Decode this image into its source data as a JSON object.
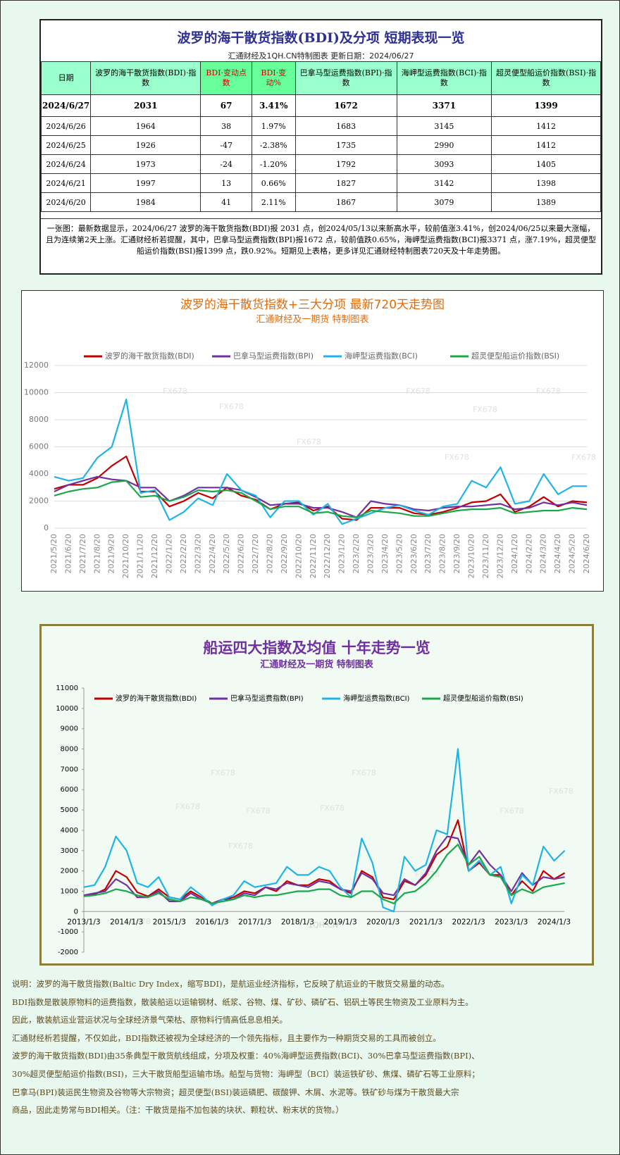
{
  "header": {
    "title": "波罗的海干散货指数(BDI)及分项  短期表现一览",
    "subtitle": "汇通财经及1QH.CN特制图表    更新日期：2024/06/27"
  },
  "table": {
    "columns": [
      "日期",
      "波罗的海干散货指数(BDI)·指数",
      "BDI·变动点数",
      "BDI·变动%",
      "巴拿马型运费指数(BPI)·指数",
      "海岬型运费指数(BCI)·指数",
      "超灵便型船运价指数(BSI)·指数"
    ],
    "rows": [
      [
        "2024/6/27",
        "2031",
        "67",
        "3.41%",
        "1672",
        "3371",
        "1399"
      ],
      [
        "2024/6/26",
        "1964",
        "38",
        "1.97%",
        "1683",
        "3145",
        "1412"
      ],
      [
        "2024/6/25",
        "1926",
        "-47",
        "-2.38%",
        "1735",
        "2990",
        "1412"
      ],
      [
        "2024/6/24",
        "1973",
        "-24",
        "-1.20%",
        "1792",
        "3093",
        "1405"
      ],
      [
        "2024/6/21",
        "1997",
        "13",
        "0.66%",
        "1827",
        "3142",
        "1398"
      ],
      [
        "2024/6/20",
        "1984",
        "41",
        "2.11%",
        "1867",
        "3079",
        "1389"
      ]
    ]
  },
  "summary": "一张图：最新数据显示，2024/06/27 波罗的海干散货指数(BDI)报 2031 点，创2024/05/13以来新高水平，较前值涨3.41%，创2024/06/25以来最大涨幅，且为连续第2天上涨。汇通财经析若提醒，其中，巴拿马型运费指数(BPI)报1672 点，较前值跌0.65%，海岬型运费指数(BCI)报3371 点，涨7.19%，超灵便型船运价指数(BSI)报1399 点，跌0.92%。短期见上表格，更多详见汇通财经特制图表720天及十年走势图。",
  "chart_data": [
    {
      "type": "line",
      "title": "波罗的海干散货指数+三大分项  最新720天走势图",
      "subtitle": "汇通财经及一期货  特制图表",
      "watermark": "FX678",
      "categories": [
        "2021/5/20",
        "2021/6/20",
        "2021/7/20",
        "2021/8/20",
        "2021/9/20",
        "2021/10/20",
        "2021/11/20",
        "2021/12/20",
        "2022/1/20",
        "2022/2/20",
        "2022/3/20",
        "2022/4/20",
        "2022/5/20",
        "2022/6/20",
        "2022/7/20",
        "2022/8/20",
        "2022/9/20",
        "2022/10/20",
        "2022/11/20",
        "2022/12/20",
        "2023/1/20",
        "2023/2/20",
        "2023/3/20",
        "2023/4/20",
        "2023/5/20",
        "2023/6/20",
        "2023/7/20",
        "2023/8/20",
        "2023/9/20",
        "2023/10/20",
        "2023/11/20",
        "2023/12/20",
        "2024/1/20",
        "2024/2/20",
        "2024/3/20",
        "2024/4/20",
        "2024/5/20",
        "2024/6/20"
      ],
      "series": [
        {
          "name": "波罗的海干散货指数(BDI)",
          "color": "#c00000",
          "values": [
            2900,
            3200,
            3200,
            3700,
            4600,
            5300,
            2700,
            2700,
            1600,
            2000,
            2600,
            2200,
            3000,
            2400,
            2100,
            1400,
            1800,
            1900,
            1300,
            1600,
            700,
            600,
            1500,
            1500,
            1500,
            1100,
            1000,
            1200,
            1500,
            1900,
            2000,
            2500,
            1200,
            1600,
            2300,
            1600,
            2000,
            1900
          ]
        },
        {
          "name": "巴拿马型运费指数(BPI)",
          "color": "#7030a0",
          "values": [
            2700,
            3200,
            3500,
            3800,
            3600,
            3500,
            3000,
            3000,
            2000,
            2400,
            3000,
            3000,
            3000,
            2800,
            2300,
            1700,
            1800,
            1800,
            1500,
            1500,
            1200,
            800,
            2000,
            1800,
            1700,
            1400,
            1300,
            1500,
            1600,
            1600,
            1700,
            1800,
            1400,
            1500,
            1900,
            1700,
            1900,
            1700
          ]
        },
        {
          "name": "海岬型运费指数(BCI)",
          "color": "#1eb4e6",
          "values": [
            3800,
            3500,
            3700,
            5200,
            6000,
            9500,
            2600,
            2800,
            600,
            1200,
            2200,
            1700,
            4000,
            2800,
            2400,
            800,
            2000,
            2000,
            1000,
            1800,
            300,
            700,
            1100,
            1500,
            1700,
            1300,
            1000,
            1600,
            1800,
            3500,
            3000,
            4500,
            1800,
            2000,
            4000,
            2500,
            3100,
            3100
          ]
        },
        {
          "name": "超灵便型船运价指数(BSI)",
          "color": "#1aa84a",
          "values": [
            2400,
            2700,
            2900,
            3000,
            3400,
            3500,
            2300,
            2400,
            2000,
            2300,
            2800,
            2700,
            2800,
            2600,
            2000,
            1400,
            1600,
            1600,
            1100,
            1200,
            900,
            800,
            1300,
            1200,
            1100,
            900,
            900,
            1100,
            1300,
            1400,
            1400,
            1500,
            1100,
            1200,
            1300,
            1300,
            1500,
            1400
          ]
        }
      ],
      "ylim": [
        0,
        12000
      ],
      "yticks": [
        0,
        2000,
        4000,
        6000,
        8000,
        10000,
        12000
      ],
      "grid": true
    },
    {
      "type": "line",
      "title": "船运四大指数及均值 十年走势一览",
      "subtitle": "汇通财经及一期货 特制图表",
      "watermark": "FX678",
      "categories": [
        "2013/1/3",
        null,
        null,
        null,
        "2014/1/3",
        null,
        null,
        null,
        "2015/1/3",
        null,
        null,
        null,
        "2016/1/3",
        null,
        null,
        null,
        "2017/1/3",
        null,
        null,
        null,
        "2018/1/3",
        null,
        null,
        null,
        "2019/1/3",
        null,
        null,
        null,
        "2020/1/3",
        null,
        null,
        null,
        "2021/1/3",
        null,
        null,
        null,
        "2022/1/3",
        null,
        null,
        null,
        "2023/1/3",
        null,
        null,
        null,
        "2024/1/3",
        null
      ],
      "series": [
        {
          "name": "波罗的海干散货指数(BDI)",
          "color": "#c00000",
          "values": [
            750,
            850,
            1100,
            2000,
            1700,
            950,
            750,
            1100,
            700,
            600,
            1000,
            700,
            400,
            600,
            700,
            1000,
            900,
            1200,
            1000,
            1500,
            1300,
            1300,
            1600,
            1500,
            1100,
            900,
            2000,
            1700,
            700,
            600,
            1500,
            1300,
            1800,
            2800,
            3200,
            4500,
            2000,
            2400,
            1800,
            1800,
            800,
            1500,
            1000,
            2000,
            1600,
            1900
          ]
        },
        {
          "name": "巴拿马型运费指数(BPI)",
          "color": "#7030a0",
          "values": [
            800,
            900,
            1000,
            1600,
            1300,
            700,
            700,
            1000,
            500,
            500,
            900,
            600,
            400,
            600,
            600,
            900,
            800,
            1200,
            1100,
            1400,
            1300,
            1200,
            1500,
            1400,
            1100,
            1000,
            1900,
            1600,
            900,
            800,
            1600,
            1300,
            1900,
            3000,
            3700,
            3600,
            2300,
            3000,
            2300,
            1800,
            1000,
            1900,
            1300,
            1700,
            1600,
            1700
          ]
        },
        {
          "name": "海岬型运费指数(BCI)",
          "color": "#1eb4e6",
          "values": [
            1200,
            1300,
            2200,
            3700,
            3000,
            1400,
            1200,
            1700,
            700,
            600,
            1200,
            800,
            300,
            600,
            800,
            1500,
            1200,
            1300,
            1400,
            2200,
            1800,
            1800,
            2200,
            2000,
            1200,
            700,
            3600,
            2400,
            200,
            0,
            2700,
            2000,
            2300,
            4000,
            3800,
            8000,
            2000,
            2500,
            1800,
            2200,
            400,
            1800,
            1300,
            3200,
            2500,
            3000
          ]
        },
        {
          "name": "超灵便型船运价指数(BSI)",
          "color": "#1aa84a",
          "values": [
            750,
            800,
            900,
            1100,
            1000,
            800,
            700,
            900,
            600,
            500,
            700,
            600,
            400,
            500,
            600,
            800,
            700,
            800,
            800,
            900,
            1000,
            1000,
            1100,
            1100,
            800,
            700,
            1000,
            1000,
            600,
            400,
            900,
            1000,
            1400,
            2000,
            2800,
            3300,
            2300,
            2700,
            1800,
            1700,
            800,
            1100,
            900,
            1200,
            1300,
            1400
          ]
        }
      ],
      "ylim": [
        -2000,
        11000
      ],
      "yticks": [
        -2000,
        -1000,
        0,
        1000,
        2000,
        3000,
        4000,
        5000,
        6000,
        7000,
        8000,
        9000,
        10000,
        11000
      ],
      "grid": false,
      "watermark2": "1QH.CN"
    }
  ],
  "notes": [
    "说明：波罗的海干散货指数(Baltic Dry Index，缩写BDI)，是航运业经济指标，它反映了航运业的干散货交易量的动态。",
    "BDI指数是散装原物料的运费指数，散装船运以运输钢材、纸浆、谷物、煤、矿砂、磷矿石、铝矾土等民生物资及工业原料为主。",
    "因此，散装航运业营运状况与全球经济景气荣枯、原物料行情高低息息相关。",
    "汇通财经析若提醒，不仅如此，BDI指数还被视为全球经济的一个领先指标，且主要作为一种期货交易的工具而被创立。",
    "波罗的海干散货指数(BDI)由35条典型干散货航线组成，分项及权重：40%海岬型运费指数(BCI)、30%巴拿马型运费指数(BPI)、",
    "30%超灵便型船运价指数(BSI)，三大干散货船型运输市场。船型与货物：海岬型（BCI）装运铁矿砂、焦煤、磷矿石等工业原料；",
    "巴拿马(BPI)装运民生物资及谷物等大宗物资；超灵便型(BSI)装运磷肥、碳酸钾、木屑、水泥等。铁矿砂与煤为干散货最大宗",
    "商品，因此走势常与BDI相关。（注：干散货是指不加包装的块状、颗粒状、粉末状的货物。）"
  ]
}
